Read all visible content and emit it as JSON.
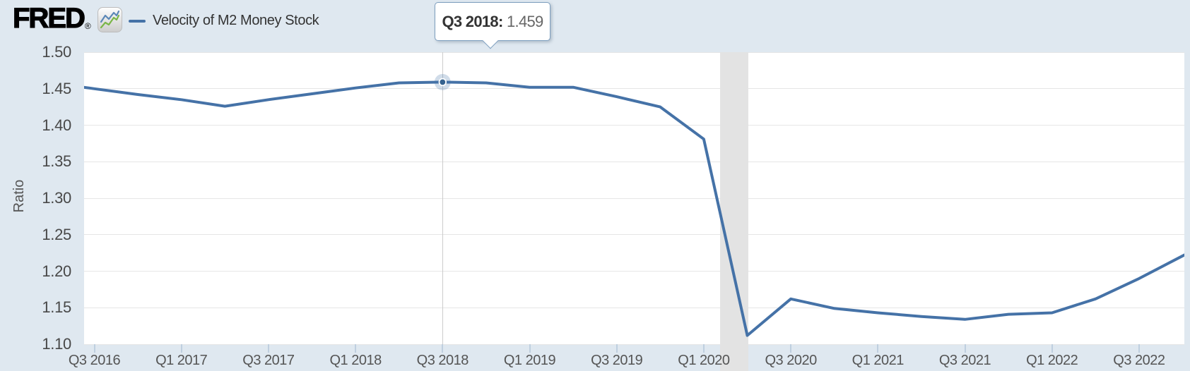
{
  "header": {
    "logo_text": "FRED",
    "registered_mark": "®"
  },
  "legend": {
    "series_label": "Velocity of M2 Money Stock"
  },
  "tooltip": {
    "label": "Q3 2018:",
    "value": "1.459"
  },
  "colors": {
    "series": "#4572a7",
    "page_background": "#dfe8f0",
    "plot_background": "#ffffff",
    "gridline": "#e6e6e6",
    "recession_band": "#e3e3e3",
    "crosshair": "#cccccc",
    "x_tick_mark": "#bfcfdf",
    "tooltip_border": "#7e9fbf",
    "logo_icon_green": "#7ab648",
    "logo_icon_blue": "#5b87b7"
  },
  "chart_data": {
    "type": "line",
    "title": "Velocity of M2 Money Stock",
    "ylabel": "Ratio",
    "xlabel": "",
    "ylim": [
      1.1,
      1.5
    ],
    "y_tick_step": 0.05,
    "y_tick_labels": [
      "1.50",
      "1.45",
      "1.40",
      "1.35",
      "1.30",
      "1.25",
      "1.20",
      "1.15",
      "1.10"
    ],
    "grid": "horizontal",
    "legend_position": "top-left",
    "x": [
      "Q3 2016",
      "Q4 2016",
      "Q1 2017",
      "Q2 2017",
      "Q3 2017",
      "Q4 2017",
      "Q1 2018",
      "Q2 2018",
      "Q3 2018",
      "Q4 2018",
      "Q1 2019",
      "Q2 2019",
      "Q3 2019",
      "Q4 2019",
      "Q1 2020",
      "Q2 2020",
      "Q3 2020",
      "Q4 2020",
      "Q1 2021",
      "Q2 2021",
      "Q3 2021",
      "Q4 2021",
      "Q1 2022",
      "Q2 2022",
      "Q3 2022",
      "Q4 2022"
    ],
    "series": [
      {
        "name": "Velocity of M2 Money Stock",
        "color": "#4572a7",
        "values": [
          1.45,
          1.442,
          1.435,
          1.426,
          1.435,
          1.443,
          1.451,
          1.458,
          1.459,
          1.458,
          1.452,
          1.452,
          1.439,
          1.425,
          1.381,
          1.112,
          1.162,
          1.149,
          1.143,
          1.138,
          1.134,
          1.141,
          1.143,
          1.162,
          1.19,
          1.221
        ]
      }
    ],
    "x_tick_labels": [
      "Q3 2016",
      "Q1 2017",
      "Q3 2017",
      "Q1 2018",
      "Q3 2018",
      "Q1 2019",
      "Q3 2019",
      "Q1 2020",
      "Q3 2020",
      "Q1 2021",
      "Q3 2021",
      "Q1 2022",
      "Q3 2022"
    ],
    "highlighted_point": {
      "x": "Q3 2018",
      "value": 1.459,
      "index": 8
    },
    "recession_band": {
      "from_index": 14.37,
      "to_index": 15.02
    }
  }
}
